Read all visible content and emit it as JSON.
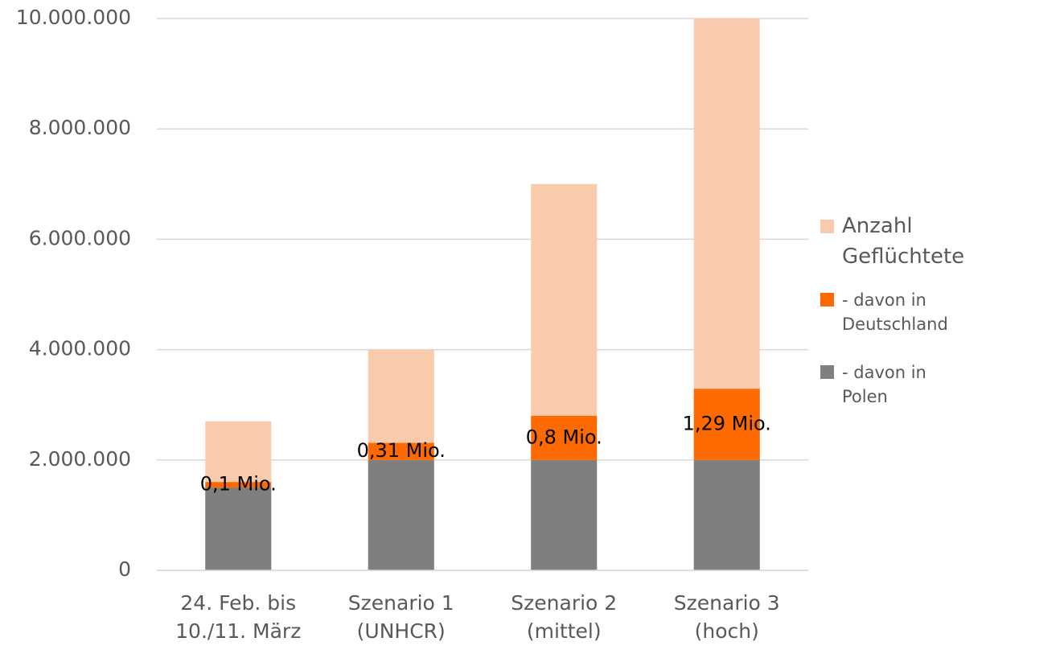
{
  "chart_data": {
    "type": "bar",
    "categories": [
      [
        "24. Feb. bis",
        "10./11. März"
      ],
      [
        "Szenario 1",
        "(UNHCR)"
      ],
      [
        "Szenario 2",
        "(mittel)"
      ],
      [
        "Szenario 3",
        "(hoch)"
      ]
    ],
    "series": [
      {
        "name": "Anzahl Geflüchtete",
        "color": "#f8cbad",
        "values": [
          2700000,
          4000000,
          7000000,
          10000000
        ],
        "stack": false
      },
      {
        "name": "- davon in Deutschland",
        "color": "#ff6a00",
        "values": [
          100000,
          310000,
          800000,
          1290000
        ],
        "value_labels": [
          "0,1 Mio.",
          "0,31 Mio.",
          "0,8 Mio.",
          "1,29 Mio."
        ],
        "stack": true
      },
      {
        "name": "- davon in Polen",
        "color": "#7f7f7f",
        "values": [
          1500000,
          2000000,
          2000000,
          2000000
        ],
        "stack": true
      }
    ],
    "ylim": [
      0,
      10000000
    ],
    "yticks": [
      0,
      {
        "value": 2000000,
        "label": "2.000.000"
      },
      {
        "value": 4000000,
        "label": "4.000.000"
      },
      {
        "value": 6000000,
        "label": "6.000.000"
      },
      {
        "value": 8000000,
        "label": "8.000.000"
      },
      {
        "value": 10000000,
        "label": "10.000.000"
      }
    ],
    "grid": true,
    "legend": "right"
  }
}
